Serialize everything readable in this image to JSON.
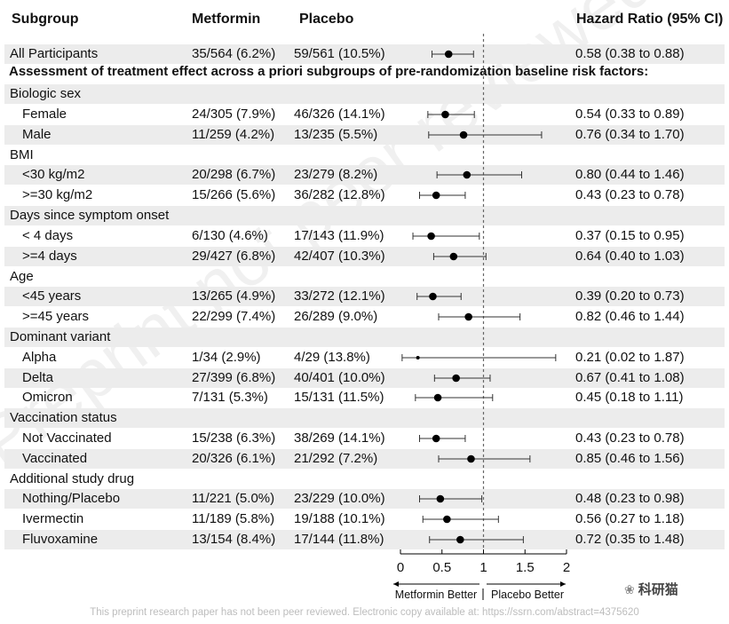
{
  "headers": {
    "subgroup": "Subgroup",
    "metformin": "Metformin",
    "placebo": "Placebo",
    "hazard_ratio": "Hazard Ratio (95% CI)"
  },
  "note": "Assessment of treatment effect across a priori subgroups of pre-randomization baseline risk factors:",
  "rows": [
    {
      "label": "All Participants",
      "met": "35/564 (6.2%)",
      "pla": "59/561 (10.5%)",
      "hr_text": "0.58 (0.38 to 0.88)",
      "shaded": true,
      "child": false,
      "hr": 0.58,
      "lo": 0.38,
      "hi": 0.88
    },
    {
      "label": "Biologic sex",
      "shaded": true,
      "header": true
    },
    {
      "label": "Female",
      "met": "24/305 (7.9%)",
      "pla": "46/326 (14.1%)",
      "hr_text": "0.54 (0.33 to 0.89)",
      "shaded": false,
      "child": true,
      "hr": 0.54,
      "lo": 0.33,
      "hi": 0.89
    },
    {
      "label": "Male",
      "met": "11/259 (4.2%)",
      "pla": "13/235 (5.5%)",
      "hr_text": "0.76 (0.34 to 1.70)",
      "shaded": true,
      "child": true,
      "hr": 0.76,
      "lo": 0.34,
      "hi": 1.7
    },
    {
      "label": "BMI",
      "shaded": false,
      "header": true
    },
    {
      "label": "<30 kg/m2",
      "met": "20/298 (6.7%)",
      "pla": "23/279 (8.2%)",
      "hr_text": "0.80 (0.44 to 1.46)",
      "shaded": true,
      "child": true,
      "hr": 0.8,
      "lo": 0.44,
      "hi": 1.46
    },
    {
      "label": ">=30 kg/m2",
      "met": "15/266 (5.6%)",
      "pla": "36/282 (12.8%)",
      "hr_text": "0.43 (0.23 to 0.78)",
      "shaded": false,
      "child": true,
      "hr": 0.43,
      "lo": 0.23,
      "hi": 0.78
    },
    {
      "label": "Days since symptom onset",
      "shaded": true,
      "header": true
    },
    {
      "label": "< 4 days",
      "met": "6/130 (4.6%)",
      "pla": "17/143 (11.9%)",
      "hr_text": "0.37 (0.15 to 0.95)",
      "shaded": false,
      "child": true,
      "hr": 0.37,
      "lo": 0.15,
      "hi": 0.95
    },
    {
      "label": ">=4 days",
      "met": "29/427 (6.8%)",
      "pla": "42/407 (10.3%)",
      "hr_text": "0.64 (0.40 to 1.03)",
      "shaded": true,
      "child": true,
      "hr": 0.64,
      "lo": 0.4,
      "hi": 1.03
    },
    {
      "label": "Age",
      "shaded": false,
      "header": true
    },
    {
      "label": "<45 years",
      "met": "13/265 (4.9%)",
      "pla": "33/272 (12.1%)",
      "hr_text": "0.39 (0.20 to 0.73)",
      "shaded": true,
      "child": true,
      "hr": 0.39,
      "lo": 0.2,
      "hi": 0.73
    },
    {
      "label": ">=45 years",
      "met": "22/299 (7.4%)",
      "pla": "26/289 (9.0%)",
      "hr_text": "0.82 (0.46 to 1.44)",
      "shaded": false,
      "child": true,
      "hr": 0.82,
      "lo": 0.46,
      "hi": 1.44
    },
    {
      "label": "Dominant variant",
      "shaded": true,
      "header": true
    },
    {
      "label": "Alpha",
      "met": "1/34 (2.9%)",
      "pla": "4/29 (13.8%)",
      "hr_text": "0.21 (0.02 to 1.87)",
      "shaded": false,
      "child": true,
      "hr": 0.21,
      "lo": 0.02,
      "hi": 1.87
    },
    {
      "label": "Delta",
      "met": "27/399 (6.8%)",
      "pla": "40/401 (10.0%)",
      "hr_text": "0.67 (0.41 to 1.08)",
      "shaded": true,
      "child": true,
      "hr": 0.67,
      "lo": 0.41,
      "hi": 1.08
    },
    {
      "label": "Omicron",
      "met": "7/131 (5.3%)",
      "pla": "15/131 (11.5%)",
      "hr_text": "0.45 (0.18 to 1.11)",
      "shaded": false,
      "child": true,
      "hr": 0.45,
      "lo": 0.18,
      "hi": 1.11
    },
    {
      "label": "Vaccination status",
      "shaded": true,
      "header": true
    },
    {
      "label": "Not Vaccinated",
      "met": "15/238 (6.3%)",
      "pla": "38/269 (14.1%)",
      "hr_text": "0.43 (0.23 to 0.78)",
      "shaded": false,
      "child": true,
      "hr": 0.43,
      "lo": 0.23,
      "hi": 0.78
    },
    {
      "label": "Vaccinated",
      "met": "20/326 (6.1%)",
      "pla": "21/292 (7.2%)",
      "hr_text": "0.85 (0.46 to 1.56)",
      "shaded": true,
      "child": true,
      "hr": 0.85,
      "lo": 0.46,
      "hi": 1.56
    },
    {
      "label": "Additional study drug",
      "shaded": false,
      "header": true
    },
    {
      "label": "Nothing/Placebo",
      "met": "11/221 (5.0%)",
      "pla": "23/229 (10.0%)",
      "hr_text": "0.48 (0.23 to 0.98)",
      "shaded": true,
      "child": true,
      "hr": 0.48,
      "lo": 0.23,
      "hi": 0.98
    },
    {
      "label": "Ivermectin",
      "met": "11/189 (5.8%)",
      "pla": "19/188 (10.1%)",
      "hr_text": "0.56 (0.27 to 1.18)",
      "shaded": false,
      "child": true,
      "hr": 0.56,
      "lo": 0.27,
      "hi": 1.18
    },
    {
      "label": "Fluvoxamine",
      "met": "13/154 (8.4%)",
      "pla": "17/144 (11.8%)",
      "hr_text": "0.72 (0.35 to 1.48)",
      "shaded": true,
      "child": true,
      "hr": 0.72,
      "lo": 0.35,
      "hi": 1.48
    }
  ],
  "chart_data": {
    "type": "forest",
    "xlim": [
      0,
      2
    ],
    "xticks": [
      "0",
      "0.5",
      "1",
      "1.5",
      "2"
    ],
    "reference_line": 1,
    "left_label": "Metformin Better",
    "right_label": "Placebo Better",
    "series": [
      {
        "category": "All Participants",
        "hr": 0.58,
        "lo": 0.38,
        "hi": 0.88
      },
      {
        "category": "Female",
        "hr": 0.54,
        "lo": 0.33,
        "hi": 0.89
      },
      {
        "category": "Male",
        "hr": 0.76,
        "lo": 0.34,
        "hi": 1.7
      },
      {
        "category": "<30 kg/m2",
        "hr": 0.8,
        "lo": 0.44,
        "hi": 1.46
      },
      {
        "category": ">=30 kg/m2",
        "hr": 0.43,
        "lo": 0.23,
        "hi": 0.78
      },
      {
        "category": "< 4 days",
        "hr": 0.37,
        "lo": 0.15,
        "hi": 0.95
      },
      {
        "category": ">=4 days",
        "hr": 0.64,
        "lo": 0.4,
        "hi": 1.03
      },
      {
        "category": "<45 years",
        "hr": 0.39,
        "lo": 0.2,
        "hi": 0.73
      },
      {
        "category": ">=45 years",
        "hr": 0.82,
        "lo": 0.46,
        "hi": 1.44
      },
      {
        "category": "Alpha",
        "hr": 0.21,
        "lo": 0.02,
        "hi": 1.87
      },
      {
        "category": "Delta",
        "hr": 0.67,
        "lo": 0.41,
        "hi": 1.08
      },
      {
        "category": "Omicron",
        "hr": 0.45,
        "lo": 0.18,
        "hi": 1.11
      },
      {
        "category": "Not Vaccinated",
        "hr": 0.43,
        "lo": 0.23,
        "hi": 0.78
      },
      {
        "category": "Vaccinated",
        "hr": 0.85,
        "lo": 0.46,
        "hi": 1.56
      },
      {
        "category": "Nothing/Placebo",
        "hr": 0.48,
        "lo": 0.23,
        "hi": 0.98
      },
      {
        "category": "Ivermectin",
        "hr": 0.56,
        "lo": 0.27,
        "hi": 1.18
      },
      {
        "category": "Fluvoxamine",
        "hr": 0.72,
        "lo": 0.35,
        "hi": 1.48
      }
    ]
  },
  "watermark": "Preprint not peer reviewed",
  "footer": "This preprint research paper has not been peer reviewed. Electronic copy available at: https://ssrn.com/abstract=4375620",
  "brand": {
    "icon": "wechat-icon",
    "text": "科研猫"
  }
}
